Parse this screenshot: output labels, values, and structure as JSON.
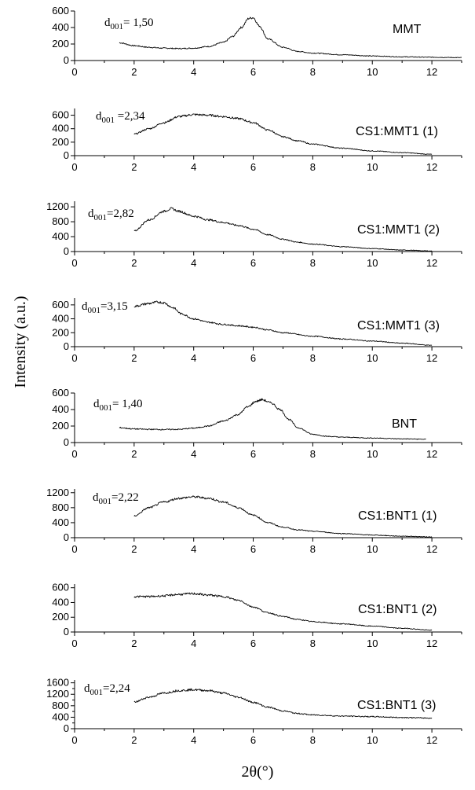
{
  "chart_data": {
    "type": "line",
    "xlabel": "2θ(°)",
    "ylabel": "Intensity (a.u.)",
    "xlim": [
      0,
      13
    ],
    "x_ticks": [
      0,
      2,
      4,
      6,
      8,
      10,
      12
    ],
    "panels": [
      {
        "series_label": "MMT",
        "annotation": {
          "main": "d",
          "sub": "001",
          "tail": "= 1,50"
        },
        "ylim": [
          0,
          600
        ],
        "y_ticks": [
          0,
          200,
          400,
          600
        ],
        "x": [
          1.5,
          2,
          2.5,
          3,
          3.5,
          4,
          4.5,
          5,
          5.3,
          5.6,
          5.85,
          6.0,
          6.2,
          6.5,
          7,
          7.5,
          8,
          9,
          10,
          11,
          12,
          13
        ],
        "y": [
          215,
          180,
          160,
          150,
          145,
          150,
          170,
          220,
          290,
          400,
          510,
          520,
          420,
          260,
          160,
          110,
          90,
          70,
          55,
          45,
          40,
          35
        ]
      },
      {
        "series_label": "CS1:MMT1 (1)",
        "annotation": {
          "main": "d",
          "sub": "001",
          "tail": " =2,34"
        },
        "ylim": [
          0,
          700
        ],
        "y_ticks": [
          0,
          200,
          400,
          600
        ],
        "x": [
          2,
          2.5,
          3,
          3.5,
          4,
          4.5,
          5,
          5.5,
          6,
          6.5,
          7,
          7.5,
          8,
          9,
          10,
          11,
          12
        ],
        "y": [
          320,
          400,
          490,
          580,
          610,
          600,
          580,
          550,
          490,
          380,
          280,
          220,
          170,
          110,
          70,
          45,
          20
        ]
      },
      {
        "series_label": "CS1:MMT1 (2)",
        "annotation": {
          "main": "d",
          "sub": "001",
          "tail": "=2,82"
        },
        "ylim": [
          0,
          1350
        ],
        "y_ticks": [
          0,
          400,
          800,
          1200
        ],
        "x": [
          2,
          2.5,
          3,
          3.25,
          3.5,
          4,
          4.5,
          5,
          5.5,
          6,
          6.5,
          7,
          7.5,
          8,
          9,
          10,
          11,
          12
        ],
        "y": [
          550,
          850,
          1080,
          1150,
          1080,
          950,
          850,
          780,
          700,
          600,
          450,
          330,
          250,
          200,
          130,
          80,
          40,
          15
        ]
      },
      {
        "series_label": "CS1:MMT1 (3)",
        "annotation": {
          "main": "d",
          "sub": "001",
          "tail": "=3,15"
        },
        "ylim": [
          0,
          700
        ],
        "y_ticks": [
          0,
          200,
          400,
          600
        ],
        "x": [
          2,
          2.5,
          2.8,
          3,
          3.3,
          3.6,
          4,
          4.5,
          5,
          5.5,
          6,
          6.5,
          7,
          8,
          9,
          10,
          11,
          12
        ],
        "y": [
          580,
          620,
          640,
          630,
          560,
          470,
          400,
          350,
          320,
          300,
          280,
          240,
          200,
          150,
          110,
          80,
          50,
          20
        ]
      },
      {
        "series_label": "BNT",
        "annotation": {
          "main": "d",
          "sub": "001",
          "tail": "= 1,40"
        },
        "ylim": [
          0,
          600
        ],
        "y_ticks": [
          0,
          200,
          400,
          600
        ],
        "x": [
          1.5,
          2,
          2.5,
          3,
          3.5,
          4,
          4.5,
          5,
          5.5,
          5.8,
          6.1,
          6.3,
          6.6,
          6.9,
          7.2,
          7.5,
          8,
          8.5,
          9,
          10,
          11,
          11.8
        ],
        "y": [
          180,
          165,
          160,
          158,
          160,
          175,
          200,
          260,
          340,
          430,
          500,
          520,
          480,
          400,
          280,
          180,
          100,
          75,
          65,
          55,
          45,
          40
        ]
      },
      {
        "series_label": "CS1:BNT1 (1)",
        "annotation": {
          "main": "d",
          "sub": "001",
          "tail": "=2,22"
        },
        "ylim": [
          0,
          1300
        ],
        "y_ticks": [
          0,
          400,
          800,
          1200
        ],
        "x": [
          2,
          2.5,
          3,
          3.5,
          4,
          4.5,
          5,
          5.5,
          6,
          6.5,
          7,
          7.5,
          8,
          9,
          10,
          11,
          12
        ],
        "y": [
          580,
          800,
          950,
          1050,
          1090,
          1050,
          950,
          800,
          600,
          400,
          280,
          210,
          170,
          110,
          70,
          40,
          20
        ]
      },
      {
        "series_label": "CS1:BNT1 (2)",
        "annotation": null,
        "ylim": [
          0,
          650
        ],
        "y_ticks": [
          0,
          200,
          400,
          600
        ],
        "x": [
          2,
          2.5,
          3,
          3.5,
          4,
          4.5,
          5,
          5.5,
          6,
          6.5,
          7,
          7.5,
          8,
          9,
          10,
          11,
          12
        ],
        "y": [
          480,
          480,
          490,
          510,
          520,
          500,
          480,
          430,
          340,
          260,
          210,
          170,
          140,
          110,
          80,
          50,
          25
        ]
      },
      {
        "series_label": "CS1:BNT1 (3)",
        "annotation": {
          "main": "d",
          "sub": "001",
          "tail": "=2,24"
        },
        "ylim": [
          0,
          1700
        ],
        "y_ticks": [
          0,
          400,
          800,
          1200,
          1600
        ],
        "minor_y_ticks": [
          200,
          600,
          1000,
          1400
        ],
        "x": [
          2,
          2.5,
          3,
          3.5,
          4,
          4.5,
          5,
          5.5,
          6,
          6.5,
          7,
          7.5,
          8,
          9,
          10,
          11,
          12
        ],
        "y": [
          930,
          1100,
          1240,
          1330,
          1360,
          1330,
          1240,
          1100,
          920,
          750,
          620,
          530,
          480,
          440,
          420,
          390,
          370
        ]
      }
    ]
  }
}
